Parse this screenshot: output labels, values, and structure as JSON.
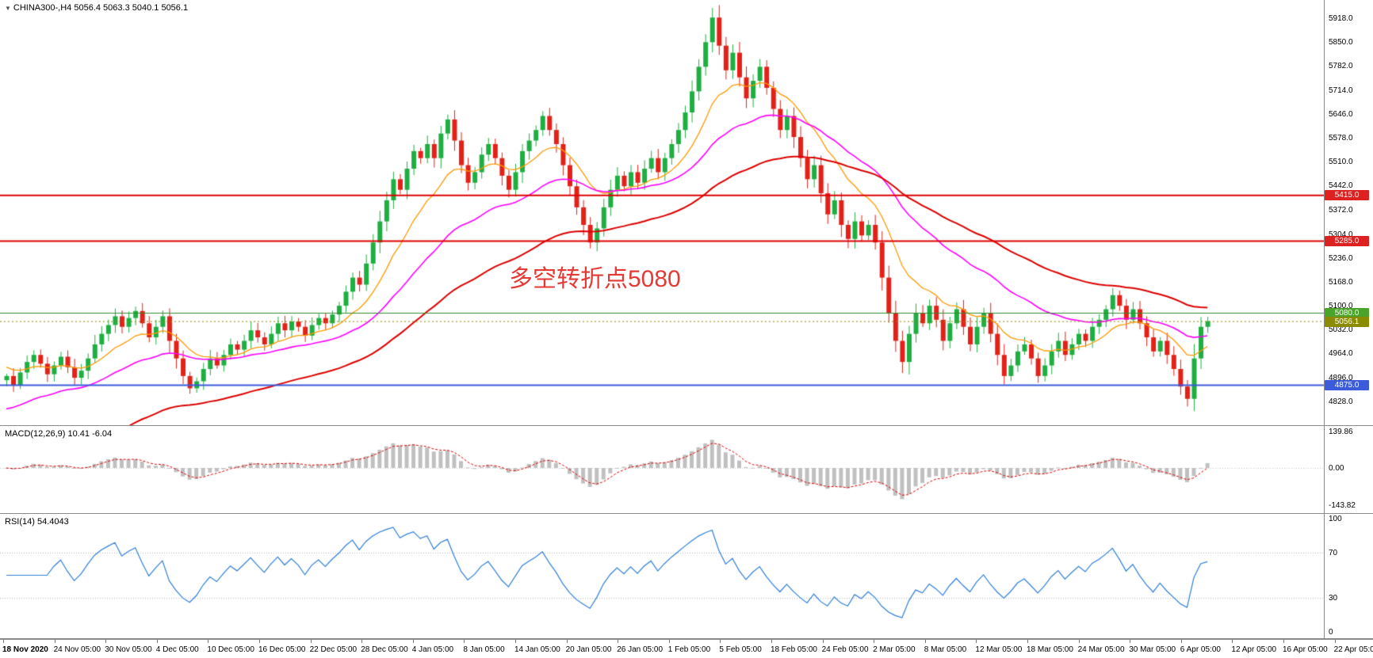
{
  "window": {
    "background": "#ffffff"
  },
  "main_panel": {
    "symbol_info": {
      "dropdown_icon": "▼",
      "symbol": "CHINA300-,H4",
      "ohlc": "5056.4 5063.3 5040.1 5056.1"
    },
    "annotation": {
      "text": "多空转折点5080",
      "color": "#e53935"
    },
    "y_axis_labels": [
      {
        "text": "5918.0",
        "value": 5918
      },
      {
        "text": "5850.0",
        "value": 5850
      },
      {
        "text": "5782.0",
        "value": 5782
      },
      {
        "text": "5714.0",
        "value": 5714
      },
      {
        "text": "5646.0",
        "value": 5646
      },
      {
        "text": "5578.0",
        "value": 5578
      },
      {
        "text": "5510.0",
        "value": 5510
      },
      {
        "text": "5442.0",
        "value": 5442
      },
      {
        "text": "5372.0",
        "value": 5372
      },
      {
        "text": "5304.0",
        "value": 5304
      },
      {
        "text": "5236.0",
        "value": 5236
      },
      {
        "text": "5168.0",
        "value": 5168
      },
      {
        "text": "5100.0",
        "value": 5100
      },
      {
        "text": "5032.0",
        "value": 5032
      },
      {
        "text": "4964.0",
        "value": 4964
      },
      {
        "text": "4896.0",
        "value": 4896
      },
      {
        "text": "4828.0",
        "value": 4828
      }
    ],
    "price_flags": [
      {
        "text": "5415.0",
        "value": 5415,
        "bg": "#dd2020"
      },
      {
        "text": "5285.0",
        "value": 5285,
        "bg": "#dd2020"
      },
      {
        "text": "5080.0",
        "value": 5080,
        "bg": "#4aa42a"
      },
      {
        "text": "5056.1",
        "value": 5056.1,
        "bg": "#8b8b00"
      },
      {
        "text": "4875.0",
        "value": 4875,
        "bg": "#3b5bdb"
      }
    ]
  },
  "macd_panel": {
    "label": "MACD(12,26,9)",
    "values": "10.41 -6.04",
    "y_axis_labels": [
      {
        "text": "139.86",
        "value": 139.86
      },
      {
        "text": "0.00",
        "value": 0
      },
      {
        "text": "-143.82",
        "value": -143.82
      }
    ]
  },
  "rsi_panel": {
    "label": "RSI(14)",
    "value": "54.4043",
    "y_axis_labels": [
      {
        "text": "100",
        "value": 100
      },
      {
        "text": "70",
        "value": 70
      },
      {
        "text": "30",
        "value": 30
      },
      {
        "text": "0",
        "value": 0
      }
    ],
    "levels": [
      70,
      30
    ]
  },
  "time_axis": {
    "labels": [
      "18 Nov 2020",
      "24 Nov 05:00",
      "30 Nov 05:00",
      "4 Dec 05:00",
      "10 Dec 05:00",
      "16 Dec 05:00",
      "22 Dec 05:00",
      "28 Dec 05:00",
      "4 Jan 05:00",
      "8 Jan 05:00",
      "14 Jan 05:00",
      "20 Jan 05:00",
      "26 Jan 05:00",
      "1 Feb 05:00",
      "5 Feb 05:00",
      "18 Feb 05:00",
      "24 Feb 05:00",
      "2 Mar 05:00",
      "8 Mar 05:00",
      "12 Mar 05:00",
      "18 Mar 05:00",
      "24 Mar 05:00",
      "30 Mar 05:00",
      "6 Apr 05:00",
      "12 Apr 05:00",
      "16 Apr 05:00",
      "22 Apr 05:0"
    ]
  },
  "chart_data": [
    {
      "type": "candlestick",
      "title": "CHINA300-,H4",
      "x_labels": [
        "18 Nov 2020",
        "24 Nov 05:00",
        "30 Nov 05:00",
        "4 Dec 05:00",
        "10 Dec 05:00",
        "16 Dec 05:00",
        "22 Dec 05:00",
        "28 Dec 05:00",
        "4 Jan 05:00",
        "8 Jan 05:00",
        "14 Jan 05:00",
        "20 Jan 05:00",
        "26 Jan 05:00",
        "1 Feb 05:00",
        "5 Feb 05:00",
        "18 Feb 05:00",
        "24 Feb 05:00",
        "2 Mar 05:00",
        "8 Mar 05:00",
        "12 Mar 05:00",
        "18 Mar 05:00",
        "24 Mar 05:00",
        "30 Mar 05:00",
        "6 Apr 05:00",
        "12 Apr 05:00",
        "16 Apr 05:00",
        "22 Apr 05:0"
      ],
      "closes": [
        4900,
        4875,
        4910,
        4940,
        4960,
        4935,
        4905,
        4930,
        4955,
        4925,
        4895,
        4915,
        4950,
        4990,
        5020,
        5045,
        5070,
        5040,
        5065,
        5085,
        5050,
        5010,
        5040,
        5070,
        5000,
        4950,
        4900,
        4865,
        4885,
        4920,
        4950,
        4930,
        4960,
        4990,
        4975,
        5000,
        5030,
        5010,
        4990,
        5020,
        5050,
        5030,
        5055,
        5040,
        5015,
        5045,
        5065,
        5050,
        5075,
        5100,
        5140,
        5180,
        5160,
        5220,
        5280,
        5340,
        5400,
        5460,
        5430,
        5490,
        5540,
        5520,
        5560,
        5520,
        5590,
        5630,
        5570,
        5500,
        5450,
        5480,
        5530,
        5560,
        5520,
        5470,
        5430,
        5480,
        5540,
        5570,
        5600,
        5640,
        5600,
        5560,
        5500,
        5440,
        5380,
        5330,
        5280,
        5320,
        5380,
        5430,
        5470,
        5440,
        5480,
        5450,
        5490,
        5520,
        5480,
        5520,
        5560,
        5600,
        5650,
        5710,
        5780,
        5850,
        5920,
        5840,
        5770,
        5820,
        5750,
        5690,
        5740,
        5780,
        5720,
        5660,
        5600,
        5640,
        5580,
        5520,
        5460,
        5500,
        5420,
        5360,
        5400,
        5330,
        5290,
        5340,
        5300,
        5330,
        5280,
        5180,
        5080,
        5000,
        4940,
        5020,
        5080,
        5050,
        5100,
        5060,
        5000,
        5050,
        5090,
        5040,
        4990,
        5040,
        5080,
        5020,
        4960,
        4900,
        4930,
        4970,
        4990,
        4950,
        4900,
        4930,
        4970,
        5000,
        4960,
        4990,
        5020,
        5000,
        5040,
        5060,
        5090,
        5130,
        5100,
        5060,
        5090,
        5050,
        5010,
        4970,
        5000,
        4960,
        4920,
        4870,
        4835,
        4950,
        5040,
        5056
      ],
      "open_equals_previous_close": true,
      "last_price": 5056.1,
      "ylim": [
        4760,
        5970
      ],
      "y_ticks": [
        "5918.0",
        "5850.0",
        "5782.0",
        "5714.0",
        "5646.0",
        "5578.0",
        "5510.0",
        "5442.0",
        "5372.0",
        "5304.0",
        "5236.0",
        "5168.0",
        "5100.0",
        "5032.0",
        "4964.0",
        "4896.0",
        "4828.0"
      ],
      "up_color": "#1fae41",
      "down_color": "#e22118",
      "moving_averages": [
        {
          "name": "fast",
          "color": "#ff9800"
        },
        {
          "name": "medium",
          "color": "#ff00ff"
        },
        {
          "name": "slow",
          "color": "#dd0000"
        }
      ],
      "hlines": [
        {
          "value": 5415,
          "color": "#dd0000",
          "width": 2
        },
        {
          "value": 5285,
          "color": "#dd0000",
          "width": 2
        },
        {
          "value": 5080,
          "color": "#2e8b2e",
          "width": 1
        },
        {
          "value": 4875,
          "color": "#3b5bdb",
          "width": 2
        },
        {
          "value": 5056.1,
          "color": "#8b8b00",
          "width": 1,
          "style": "dotted"
        }
      ],
      "annotation": "多空转折点5080"
    },
    {
      "type": "bar",
      "name": "MACD(12,26,9)",
      "current_values": "10.41 -6.04",
      "ylim": [
        -160,
        160
      ],
      "y_ticks": [
        "139.86",
        "0.00",
        "-143.82"
      ],
      "derived_from": "chart_data[0].closes",
      "histogram_color": "#c0c0c0",
      "signal_color": "#dd0000"
    },
    {
      "type": "line",
      "name": "RSI(14)",
      "current_value": "54.4043",
      "ylim": [
        0,
        100
      ],
      "levels": [
        70,
        30
      ],
      "y_ticks": [
        "100",
        "70",
        "30",
        "0"
      ],
      "derived_from": "chart_data[0].closes",
      "line_color": "#2f7ed8"
    }
  ]
}
